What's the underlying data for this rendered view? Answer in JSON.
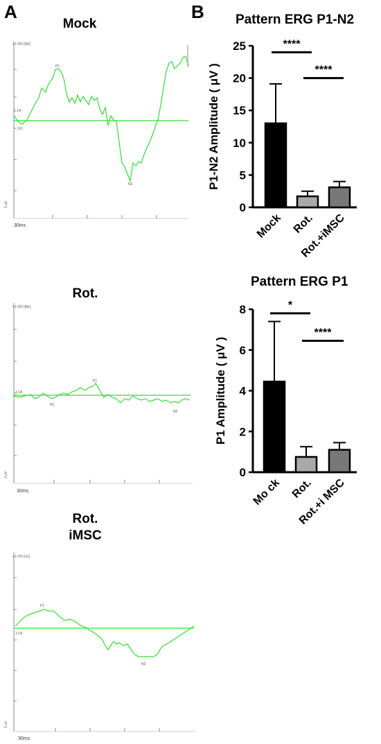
{
  "panel_labels": {
    "a": "A",
    "b": "B"
  },
  "traces": [
    {
      "title": "Mock",
      "cursor_label": "+1-OD [RE]",
      "base_label": "1.1A",
      "unit_label": "2 μV",
      "time_label": "30ms",
      "peak_labels": {
        "n1": "N1",
        "p1": "P1",
        "n2": "N2"
      }
    },
    {
      "title": "Rot.",
      "cursor_label": "+1-OD [RE]",
      "base_label": "1.1A",
      "unit_label": "2 μV",
      "time_label": "30ms",
      "peak_labels": {
        "n1": "N1",
        "p1": "P1",
        "n2": "N2"
      }
    },
    {
      "title_line1": "Rot.",
      "title_line2": "iMSC",
      "cursor_label": "+1-OS [LE]",
      "base_label": "1.1A",
      "unit_label": "2 μV",
      "time_label": "30ms",
      "peak_labels": {
        "p1": "P1",
        "n2": "N2"
      }
    }
  ],
  "colors": {
    "trace": "#33dd33",
    "mock": "#000000",
    "rot": "#a9a9a9",
    "rot_imsc": "#787878"
  },
  "chart_data": [
    {
      "type": "bar",
      "title": "Pattern ERG P1-N2",
      "ylabel": "P1-N2 Amplitude ( μV )",
      "categories": [
        "Mock",
        "Rot.",
        "Rot.+iMSC"
      ],
      "values": [
        13.0,
        1.7,
        3.1
      ],
      "errors": [
        6.1,
        0.8,
        0.9
      ],
      "ylim": [
        0,
        25
      ],
      "yticks": [
        0,
        5,
        10,
        15,
        20,
        25
      ],
      "significance": [
        {
          "from": 0,
          "to": 1,
          "label": "****",
          "y": 24.0
        },
        {
          "from": 1,
          "to": 2,
          "label": "****",
          "y": 20.0
        }
      ]
    },
    {
      "type": "bar",
      "title": "Pattern ERG P1",
      "ylabel": "P1 Amplitude ( μV )",
      "categories": [
        "Mo ck",
        "Rot.",
        "Rot.+i MSC"
      ],
      "values": [
        4.45,
        0.75,
        1.1
      ],
      "errors": [
        2.95,
        0.5,
        0.35
      ],
      "ylim": [
        0,
        8
      ],
      "yticks": [
        0,
        2,
        4,
        6,
        8
      ],
      "significance": [
        {
          "from": 0,
          "to": 1,
          "label": "*",
          "y": 7.8
        },
        {
          "from": 1,
          "to": 2,
          "label": "****",
          "y": 6.45
        }
      ]
    }
  ]
}
